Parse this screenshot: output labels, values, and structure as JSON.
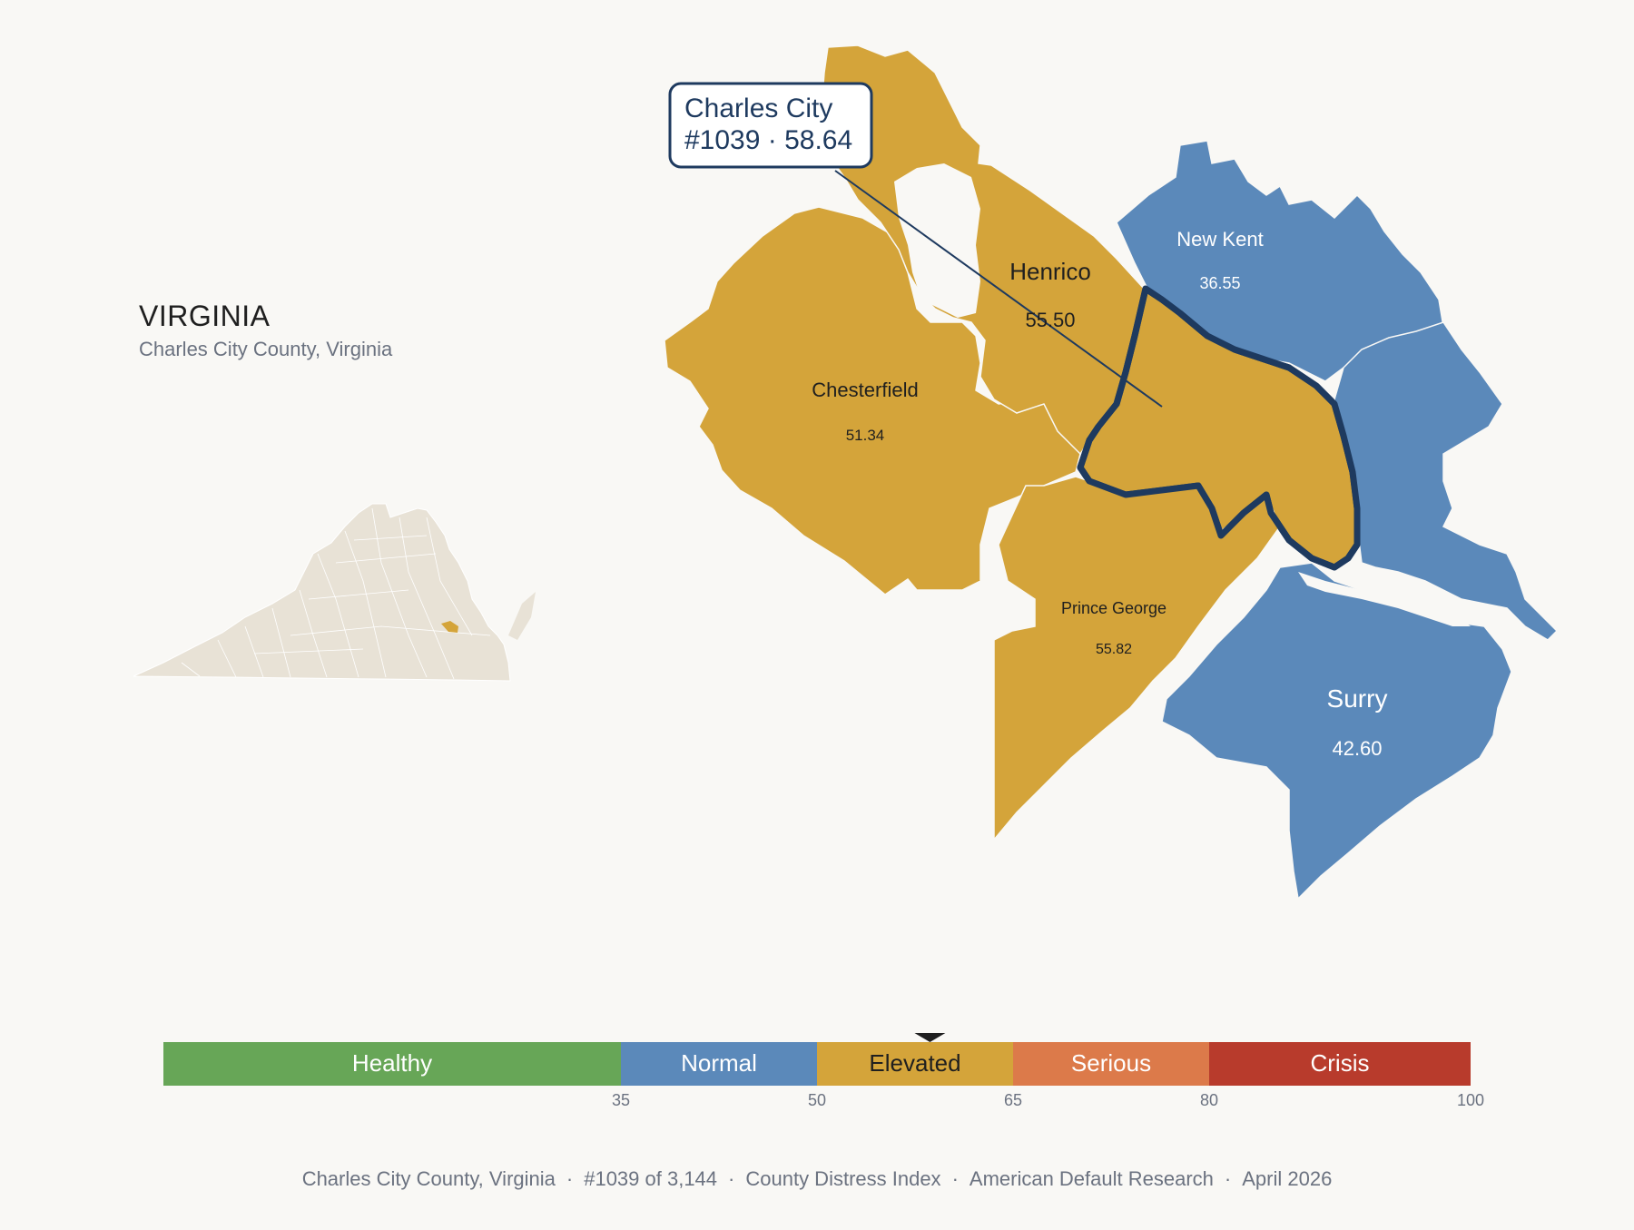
{
  "state": {
    "title": "VIRGINIA",
    "subtitle": "Charles City County, Virginia"
  },
  "callout": {
    "line1": "Charles City",
    "line2": "#1039 · 58.64"
  },
  "counties": [
    {
      "name": "Henrico",
      "score": "55.50",
      "category": "Elevated"
    },
    {
      "name": "New Kent",
      "score": "36.55",
      "category": "Normal"
    },
    {
      "name": "Chesterfield",
      "score": "51.34",
      "category": "Elevated"
    },
    {
      "name": "Prince George",
      "score": "55.82",
      "category": "Elevated"
    },
    {
      "name": "Surry",
      "score": "42.60",
      "category": "Normal"
    },
    {
      "name": "Charles City",
      "score": "58.64",
      "category": "Elevated",
      "rank": "1039",
      "highlighted": true
    }
  ],
  "legend": {
    "min": 0,
    "max": 100,
    "marker_value": 58.64,
    "segments": [
      {
        "label": "Healthy",
        "from": 0,
        "to": 35,
        "color": "#67a657",
        "text_color": "#ffffff"
      },
      {
        "label": "Normal",
        "from": 35,
        "to": 50,
        "color": "#5b89ba",
        "text_color": "#ffffff"
      },
      {
        "label": "Elevated",
        "from": 50,
        "to": 65,
        "color": "#d4a43a",
        "text_color": "#1f1f1f"
      },
      {
        "label": "Serious",
        "from": 65,
        "to": 80,
        "color": "#dc7a4a",
        "text_color": "#ffffff"
      },
      {
        "label": "Crisis",
        "from": 80,
        "to": 100,
        "color": "#b83b2c",
        "text_color": "#ffffff"
      }
    ],
    "ticks": [
      "35",
      "50",
      "65",
      "80",
      "100"
    ]
  },
  "colors": {
    "elevated": "#d4a43a",
    "normal": "#5b89ba",
    "highlight_outline": "#1e3a5f",
    "inset_fill": "#e8e2d6",
    "background": "#f9f8f5"
  },
  "footer": {
    "place": "Charles City County, Virginia",
    "rank": "#1039 of 3,144",
    "index": "County Distress Index",
    "source": "American Default Research",
    "date": "April 2026"
  }
}
